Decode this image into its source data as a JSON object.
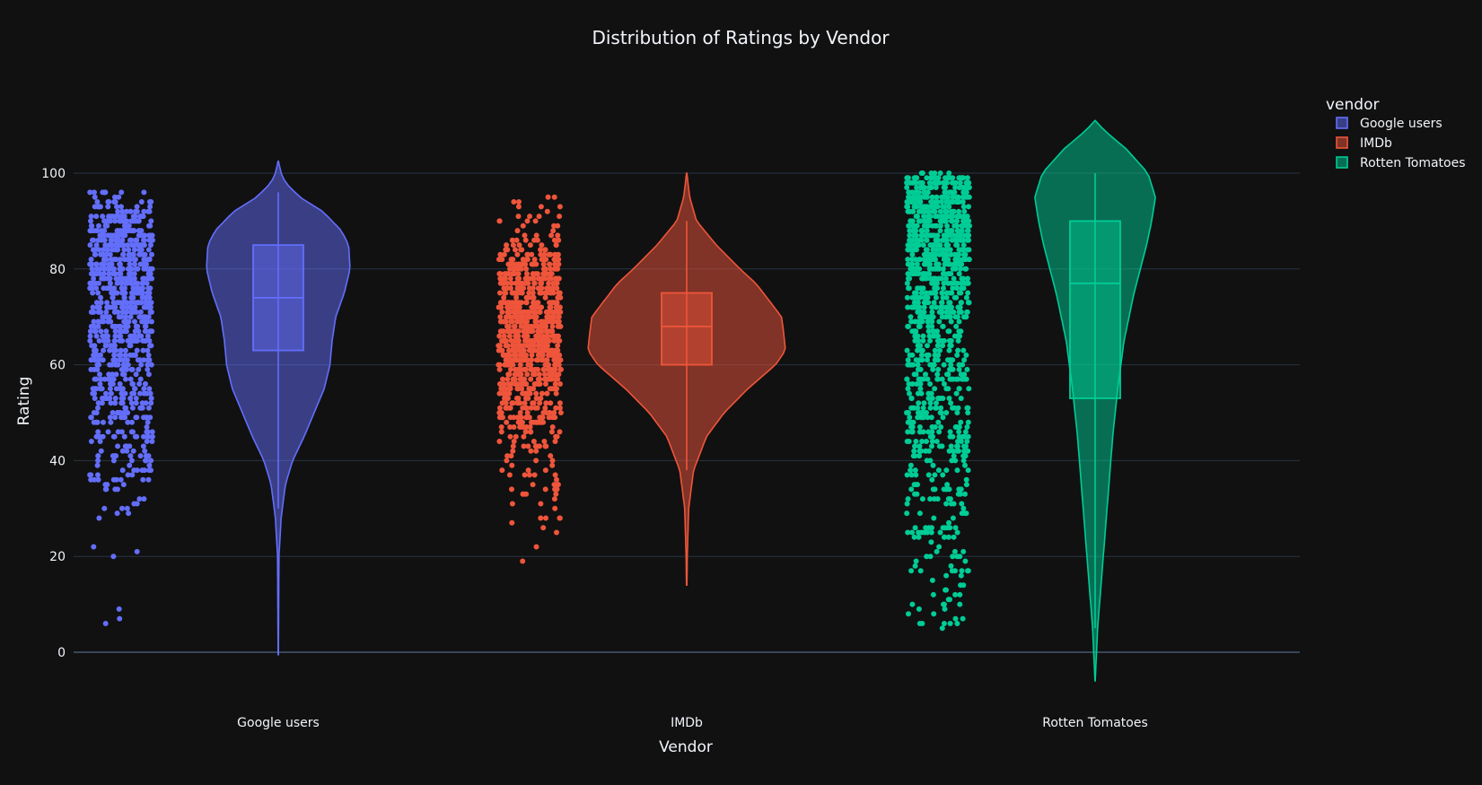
{
  "chart_data": {
    "type": "violin",
    "title": "Distribution of Ratings by Vendor",
    "xlabel": "Vendor",
    "ylabel": "Rating",
    "categories": [
      "Google users",
      "IMDb",
      "Rotten Tomatoes"
    ],
    "y_ticks": [
      0,
      20,
      40,
      60,
      80,
      100
    ],
    "ylim": [
      -12,
      118
    ],
    "grid": true,
    "points": "all",
    "legend": {
      "title": "vendor",
      "placement": "top-right"
    },
    "series": [
      {
        "name": "Google users",
        "color": "#636efa",
        "box": {
          "min": 30,
          "q1": 63,
          "median": 74,
          "q3": 85,
          "max": 96
        },
        "violin_range": [
          -0.5,
          102.5
        ],
        "density": [
          [
            -0.5,
            0.002
          ],
          [
            10,
            0.006
          ],
          [
            20,
            0.01
          ],
          [
            28,
            0.04
          ],
          [
            35,
            0.1
          ],
          [
            40,
            0.2
          ],
          [
            45,
            0.36
          ],
          [
            50,
            0.5
          ],
          [
            55,
            0.64
          ],
          [
            60,
            0.72
          ],
          [
            65,
            0.75
          ],
          [
            70,
            0.8
          ],
          [
            75,
            0.92
          ],
          [
            80,
            1.0
          ],
          [
            85,
            0.98
          ],
          [
            88,
            0.88
          ],
          [
            92,
            0.62
          ],
          [
            95,
            0.3
          ],
          [
            98,
            0.1
          ],
          [
            100,
            0.04
          ],
          [
            102.5,
            0.002
          ]
        ],
        "point_range": [
          6,
          96
        ],
        "point_count": 900,
        "outliers": [
          6,
          30,
          30,
          32
        ]
      },
      {
        "name": "IMDb",
        "color": "#ef553b",
        "box": {
          "min": 38,
          "q1": 60,
          "median": 68,
          "q3": 75,
          "max": 90
        },
        "violin_range": [
          14,
          100
        ],
        "density": [
          [
            14,
            0.002
          ],
          [
            20,
            0.006
          ],
          [
            30,
            0.02
          ],
          [
            38,
            0.07
          ],
          [
            45,
            0.2
          ],
          [
            50,
            0.38
          ],
          [
            55,
            0.62
          ],
          [
            60,
            0.9
          ],
          [
            63,
            1.0
          ],
          [
            67,
            0.98
          ],
          [
            70,
            0.96
          ],
          [
            73,
            0.85
          ],
          [
            77,
            0.7
          ],
          [
            80,
            0.54
          ],
          [
            85,
            0.3
          ],
          [
            90,
            0.1
          ],
          [
            95,
            0.03
          ],
          [
            100,
            0.002
          ]
        ],
        "point_range": [
          19,
          95
        ],
        "point_count": 900,
        "outliers": [
          19,
          22,
          26,
          27,
          28,
          94,
          95
        ]
      },
      {
        "name": "Rotten Tomatoes",
        "color": "#00cc96",
        "box": {
          "min": 5,
          "q1": 53,
          "median": 77,
          "q3": 90,
          "max": 100
        },
        "violin_range": [
          -6,
          111
        ],
        "density": [
          [
            -6,
            0.002
          ],
          [
            5,
            0.04
          ],
          [
            15,
            0.1
          ],
          [
            25,
            0.16
          ],
          [
            35,
            0.22
          ],
          [
            45,
            0.28
          ],
          [
            55,
            0.36
          ],
          [
            65,
            0.46
          ],
          [
            75,
            0.62
          ],
          [
            85,
            0.82
          ],
          [
            90,
            0.9
          ],
          [
            95,
            0.96
          ],
          [
            100,
            0.84
          ],
          [
            105,
            0.5
          ],
          [
            109,
            0.14
          ],
          [
            111,
            0.002
          ]
        ],
        "point_range": [
          5,
          100
        ],
        "point_count": 1100,
        "outliers": []
      }
    ]
  }
}
